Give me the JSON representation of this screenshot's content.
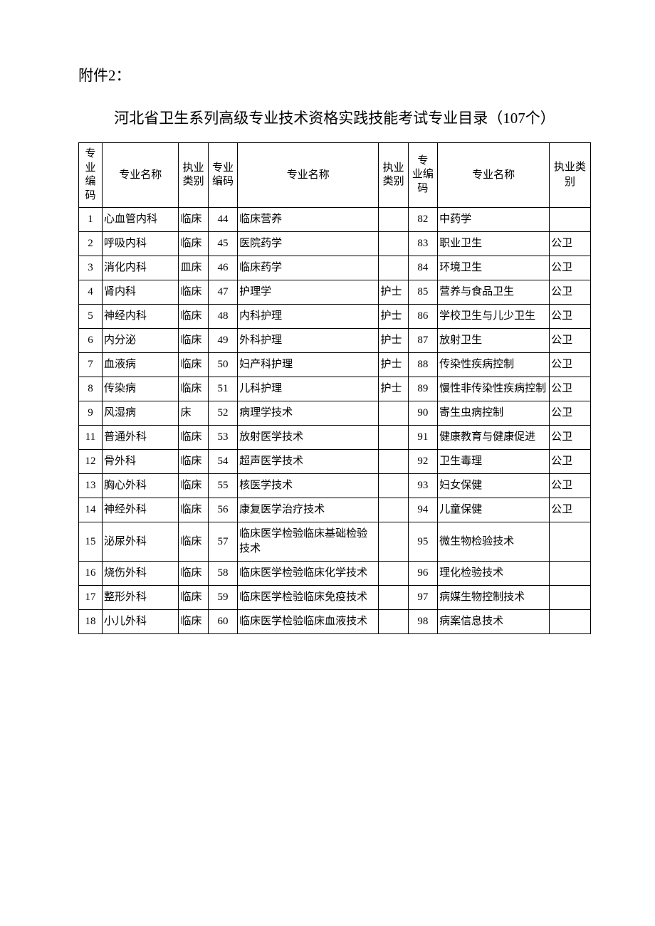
{
  "attachment_label": "附件2：",
  "title": "河北省卫生系列高级专业技术资格实践技能考试专业目录（107个）",
  "headers": {
    "code": "专业编码",
    "name": "专业名称",
    "type": "执业类别",
    "code3_line1": "专",
    "code3_line2": "业编",
    "code3_line3": "码"
  },
  "rows": [
    {
      "c1": "1",
      "n1": "心血管内科",
      "t1": "临床",
      "c2": "44",
      "n2": "临床营养",
      "t2": "",
      "c3": "82",
      "n3": "中药学",
      "t3": ""
    },
    {
      "c1": "2",
      "n1": "呼吸内科",
      "t1": "临床",
      "c2": "45",
      "n2": "医院药学",
      "t2": "",
      "c3": "83",
      "n3": "职业卫生",
      "t3": "公卫"
    },
    {
      "c1": "3",
      "n1": "消化内科",
      "t1": "皿床",
      "c2": "46",
      "n2": "临床药学",
      "t2": "",
      "c3": "84",
      "n3": "环境卫生",
      "t3": "公卫"
    },
    {
      "c1": "4",
      "n1": "肾内科",
      "t1": "临床",
      "c2": "47",
      "n2": "护理学",
      "t2": "护士",
      "c3": "85",
      "n3": "营养与食品卫生",
      "t3": "公卫"
    },
    {
      "c1": "5",
      "n1": "神经内科",
      "t1": "临床",
      "c2": "48",
      "n2": "内科护理",
      "t2": "护士",
      "c3": "86",
      "n3": "学校卫生与儿少卫生",
      "t3": "公卫"
    },
    {
      "c1": "6",
      "n1": "内分泌",
      "t1": "临床",
      "c2": "49",
      "n2": "外科护理",
      "t2": "护士",
      "c3": "87",
      "n3": "放射卫生",
      "t3": "公卫"
    },
    {
      "c1": "7",
      "n1": "血液病",
      "t1": "临床",
      "c2": "50",
      "n2": "妇产科护理",
      "t2": "护士",
      "c3": "88",
      "n3": "传染性疾病控制",
      "t3": "公卫"
    },
    {
      "c1": "8",
      "n1": "传染病",
      "t1": "临床",
      "c2": "51",
      "n2": "儿科护理",
      "t2": "护士",
      "c3": "89",
      "n3": "慢性非传染性疾病控制",
      "t3": "公卫"
    },
    {
      "c1": "9",
      "n1": "风湿病",
      "t1": "床",
      "c2": "52",
      "n2": "病理学技术",
      "t2": "",
      "c3": "90",
      "n3": "寄生虫病控制",
      "t3": "公卫"
    },
    {
      "c1": "11",
      "n1": "普通外科",
      "t1": "临床",
      "c2": "53",
      "n2": "放射医学技术",
      "t2": "",
      "c3": "91",
      "n3": "健康教育与健康促进",
      "t3": "公卫"
    },
    {
      "c1": "12",
      "n1": "骨外科",
      "t1": "临床",
      "c2": "54",
      "n2": "超声医学技术",
      "t2": "",
      "c3": "92",
      "n3": "卫生毒理",
      "t3": "公卫"
    },
    {
      "c1": "13",
      "n1": "胸心外科",
      "t1": "临床",
      "c2": "55",
      "n2": "核医学技术",
      "t2": "",
      "c3": "93",
      "n3": "妇女保健",
      "t3": "公卫"
    },
    {
      "c1": "14",
      "n1": "神经外科",
      "t1": "临床",
      "c2": "56",
      "n2": "康复医学治疗技术",
      "t2": "",
      "c3": "94",
      "n3": "儿童保健",
      "t3": "公卫"
    },
    {
      "c1": "15",
      "n1": "泌尿外科",
      "t1": "临床",
      "c2": "57",
      "n2": "临床医学检验临床基础检验技术",
      "t2": "",
      "c3": "95",
      "n3": "微生物检验技术",
      "t3": ""
    },
    {
      "c1": "16",
      "n1": "烧伤外科",
      "t1": "临床",
      "c2": "58",
      "n2": "临床医学检验临床化学技术",
      "t2": "",
      "c3": "96",
      "n3": "理化检验技术",
      "t3": ""
    },
    {
      "c1": "17",
      "n1": "整形外科",
      "t1": "临床",
      "c2": "59",
      "n2": "临床医学检验临床免疫技术",
      "t2": "",
      "c3": "97",
      "n3": "病媒生物控制技术",
      "t3": ""
    },
    {
      "c1": "18",
      "n1": "小儿外科",
      "t1": "临床",
      "c2": "60",
      "n2": "临床医学检验临床血液技术",
      "t2": "",
      "c3": "98",
      "n3": "病案信息技术",
      "t3": ""
    }
  ],
  "styling": {
    "background_color": "#ffffff",
    "border_color": "#000000",
    "text_color": "#000000",
    "body_fontsize": 15,
    "title_fontsize": 21,
    "font_family": "SimSun"
  }
}
